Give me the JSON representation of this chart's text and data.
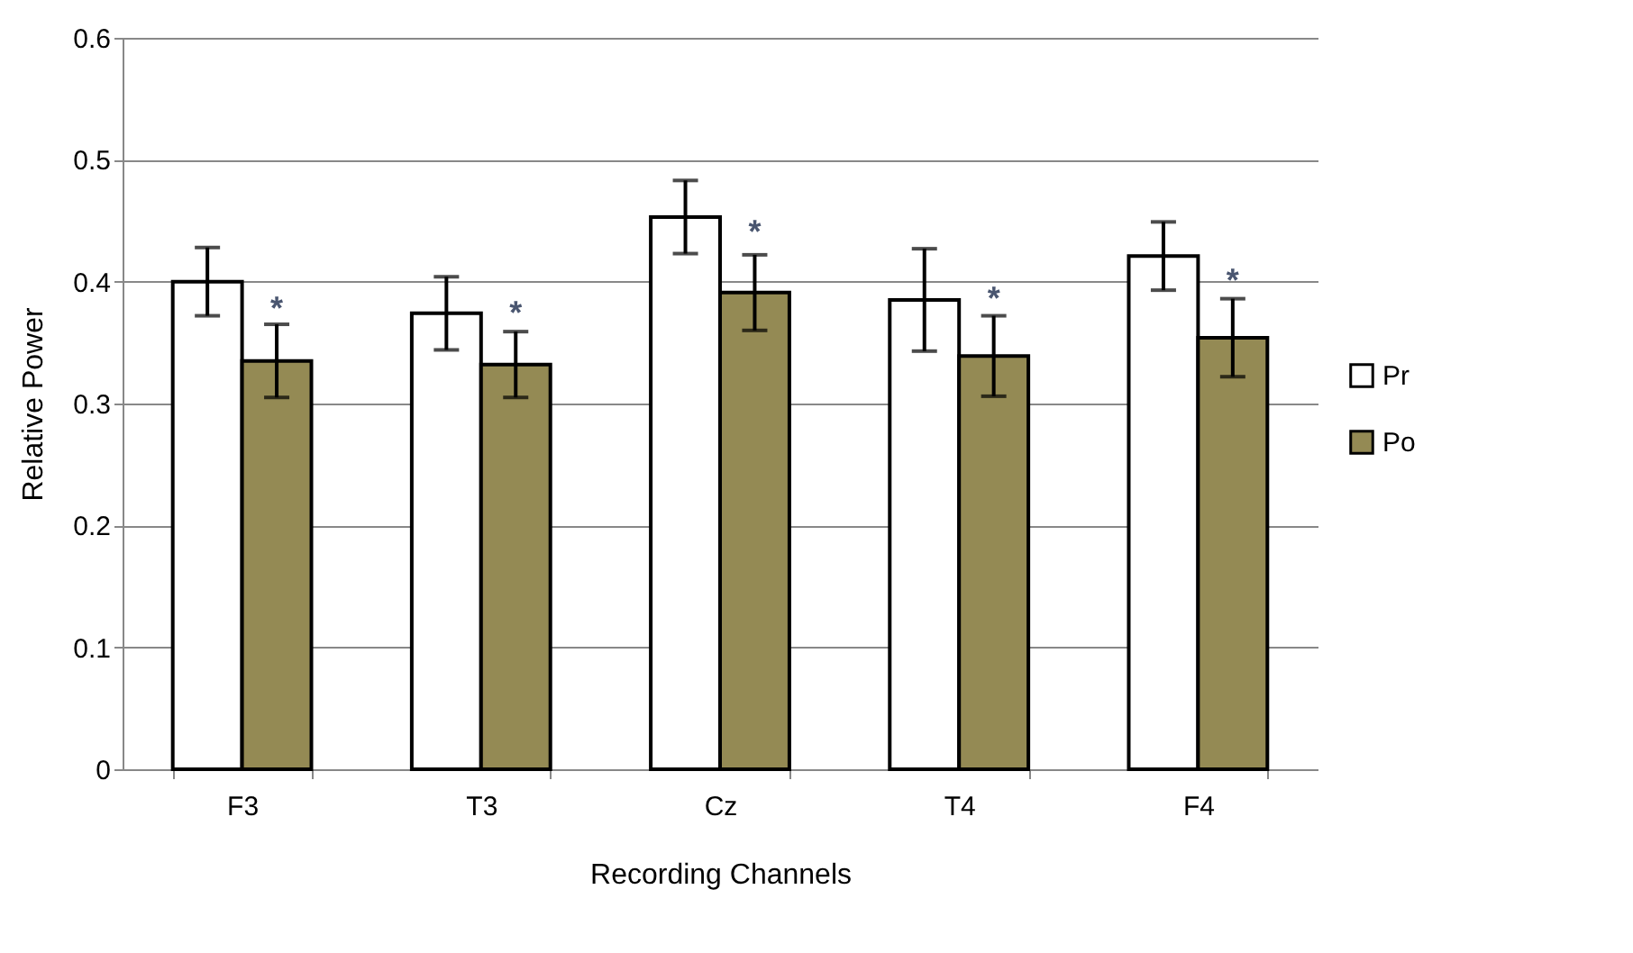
{
  "chart_data": {
    "type": "bar",
    "xlabel": "Recording Channels",
    "ylabel": "Relative Power",
    "categories": [
      "F3",
      "T3",
      "Cz",
      "T4",
      "F4"
    ],
    "series": [
      {
        "name": "Pr",
        "color": "#ffffff",
        "values": [
          0.4,
          0.374,
          0.453,
          0.385,
          0.421
        ],
        "errors": [
          0.028,
          0.03,
          0.03,
          0.042,
          0.028
        ]
      },
      {
        "name": "Po",
        "color": "#948a54",
        "values": [
          0.335,
          0.332,
          0.391,
          0.339,
          0.354
        ],
        "errors": [
          0.03,
          0.027,
          0.031,
          0.033,
          0.032
        ]
      }
    ],
    "annotations": [
      {
        "text": "*",
        "x": "F3",
        "y": 0.377
      },
      {
        "text": "*",
        "x": "T3",
        "y": 0.373
      },
      {
        "text": "*",
        "x": "Cz",
        "y": 0.44
      },
      {
        "text": "*",
        "x": "T4",
        "y": 0.385
      },
      {
        "text": "*",
        "x": "F4",
        "y": 0.4
      }
    ],
    "ylim": [
      0,
      0.6
    ],
    "yticks": [
      0,
      0.1,
      0.2,
      0.3,
      0.4,
      0.5,
      0.6
    ],
    "grid": "y",
    "legend": "right"
  }
}
